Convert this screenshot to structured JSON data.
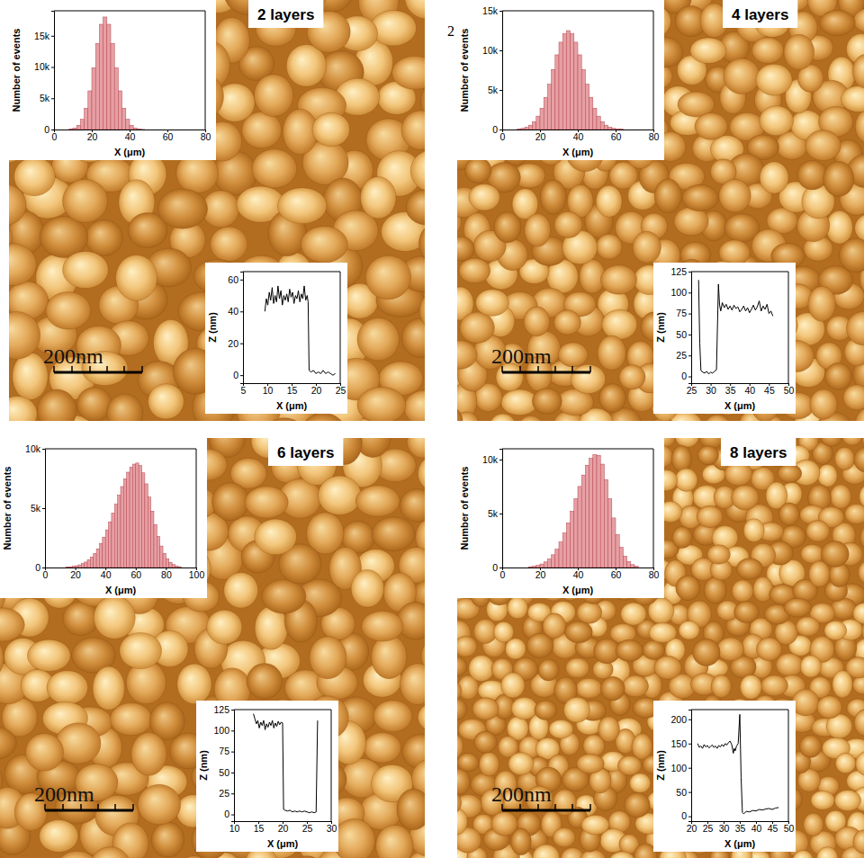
{
  "chart_data": [
    {
      "type": "histogram",
      "title": "2 layers",
      "annotations": [
        "200nm"
      ],
      "x_label": "X (μm)",
      "y_label": "Number of events",
      "bins": [
        8,
        10,
        12,
        14,
        16,
        18,
        20,
        22,
        24,
        26,
        28,
        30,
        32,
        34,
        36,
        38,
        40,
        42,
        44,
        46,
        48
      ],
      "counts": [
        80,
        250,
        680,
        1630,
        3400,
        6190,
        9880,
        13790,
        16840,
        18000,
        16840,
        13790,
        9880,
        6190,
        3400,
        1630,
        680,
        250,
        80,
        20
      ],
      "color": "#e6a0a4",
      "xlim": [
        0,
        80
      ],
      "xticks": [
        0,
        20,
        40,
        60,
        80
      ],
      "ylim": [
        0,
        19000
      ],
      "yticks": [
        0,
        {
          "value": 5000,
          "label": "5k"
        },
        {
          "value": 10000,
          "label": "10k"
        },
        {
          "value": 15000,
          "label": "15k"
        }
      ]
    },
    {
      "type": "line",
      "x_label": "X (μm)",
      "y_label": "Z (nm)",
      "x": [
        9.5,
        9.8,
        10.1,
        10.4,
        10.7,
        11.0,
        11.3,
        11.6,
        11.9,
        12.2,
        12.5,
        12.8,
        13.1,
        13.4,
        13.7,
        14.0,
        14.3,
        14.6,
        14.9,
        15.2,
        15.5,
        15.8,
        16.1,
        16.4,
        16.7,
        17.0,
        17.3,
        17.6,
        17.9,
        18.2,
        18.4,
        18.6,
        19.0,
        19.5,
        20.0,
        20.5,
        21.0,
        21.5,
        22.0,
        22.5,
        23.0,
        23.5,
        24.0
      ],
      "values": [
        40,
        48,
        44,
        52,
        47,
        55,
        45,
        50,
        46,
        56,
        48,
        53,
        44,
        50,
        47,
        51,
        46,
        54,
        49,
        52,
        45,
        50,
        48,
        53,
        46,
        51,
        48,
        56,
        47,
        50,
        46,
        3,
        2,
        3,
        1,
        2,
        1,
        3,
        1,
        2,
        1,
        0,
        1
      ],
      "color": "#000000",
      "xlim": [
        5,
        25
      ],
      "xticks": [
        5,
        10,
        15,
        20,
        25
      ],
      "ylim": [
        -5,
        65
      ],
      "yticks": [
        0,
        20,
        40,
        60
      ]
    },
    {
      "type": "histogram",
      "title": "4 layers",
      "annotations": [
        "200nm",
        "2"
      ],
      "x_label": "X (μm)",
      "y_label": "Number of events",
      "bins": [
        8,
        10,
        12,
        14,
        16,
        18,
        20,
        22,
        24,
        26,
        28,
        30,
        32,
        34,
        36,
        38,
        40,
        42,
        44,
        46,
        48,
        50,
        52,
        54,
        56,
        58,
        60,
        62,
        64
      ],
      "counts": [
        60,
        140,
        285,
        549,
        995,
        1690,
        2700,
        4060,
        5730,
        7580,
        9440,
        11030,
        12110,
        12500,
        12110,
        11030,
        9440,
        7580,
        5730,
        4060,
        2700,
        1690,
        995,
        549,
        285,
        139,
        64,
        30
      ],
      "color": "#e6a0a4",
      "xlim": [
        0,
        80
      ],
      "xticks": [
        0,
        20,
        40,
        60,
        80
      ],
      "ylim": [
        0,
        15000
      ],
      "yticks": [
        0,
        {
          "value": 5000,
          "label": "5k"
        },
        {
          "value": 10000,
          "label": "10k"
        },
        {
          "value": 15000,
          "label": "15k"
        }
      ]
    },
    {
      "type": "line",
      "x_label": "X (μm)",
      "y_label": "Z (nm)",
      "x": [
        26.9,
        27.2,
        27.5,
        28,
        28.5,
        29,
        29.5,
        30,
        30.5,
        31,
        31.5,
        32,
        32.3,
        32.6,
        33,
        33.5,
        34,
        34.5,
        35,
        35.5,
        36,
        36.5,
        37,
        37.5,
        38,
        38.5,
        39,
        39.5,
        40,
        40.5,
        41,
        41.5,
        42,
        42.5,
        43,
        43.5,
        44,
        44.5,
        45,
        45.5,
        46
      ],
      "values": [
        115,
        40,
        7,
        5,
        4,
        6,
        3,
        5,
        4,
        6,
        8,
        110,
        85,
        78,
        88,
        82,
        86,
        80,
        84,
        79,
        85,
        81,
        83,
        77,
        80,
        84,
        78,
        82,
        76,
        80,
        85,
        79,
        83,
        90,
        78,
        84,
        80,
        86,
        75,
        78,
        72
      ],
      "color": "#000000",
      "xlim": [
        25,
        50
      ],
      "xticks": [
        25,
        30,
        35,
        40,
        45,
        50
      ],
      "ylim": [
        -8,
        125
      ],
      "yticks": [
        0,
        25,
        50,
        75,
        100,
        125
      ]
    },
    {
      "type": "histogram",
      "title": "6 layers",
      "annotations": [
        "200nm"
      ],
      "x_label": "X (μm)",
      "y_label": "Number of events",
      "bins": [
        14,
        16,
        18,
        20,
        22,
        24,
        26,
        28,
        30,
        32,
        34,
        36,
        38,
        40,
        42,
        44,
        46,
        48,
        50,
        52,
        54,
        56,
        58,
        60,
        62,
        64,
        66,
        68,
        70,
        72,
        74,
        76,
        78,
        80,
        82,
        84,
        86,
        88,
        90
      ],
      "counts": [
        40,
        63,
        98,
        149,
        222,
        322,
        460,
        646,
        886,
        1190,
        1570,
        2020,
        2560,
        3170,
        3850,
        4580,
        5340,
        6100,
        6820,
        7470,
        8030,
        8450,
        8710,
        8800,
        8590,
        7970,
        7050,
        5930,
        4750,
        3620,
        2620,
        1810,
        1190,
        745,
        443,
        250,
        136,
        70
      ],
      "color": "#e6a0a4",
      "xlim": [
        0,
        100
      ],
      "xticks": [
        0,
        20,
        40,
        60,
        80,
        100
      ],
      "ylim": [
        0,
        10000
      ],
      "yticks": [
        0,
        {
          "value": 5000,
          "label": "5k"
        },
        {
          "value": 10000,
          "label": "10k"
        }
      ]
    },
    {
      "type": "line",
      "x_label": "X (μm)",
      "y_label": "Z (nm)",
      "x": [
        14,
        14.3,
        14.6,
        14.9,
        15.2,
        15.5,
        15.8,
        16.1,
        16.4,
        16.7,
        17,
        17.3,
        17.6,
        17.9,
        18.2,
        18.5,
        18.8,
        19.1,
        19.4,
        19.7,
        20,
        20.2,
        20.5,
        21,
        21.5,
        22,
        22.5,
        23,
        23.5,
        24,
        24.5,
        25,
        25.5,
        26,
        26.5,
        26.9,
        27.2
      ],
      "values": [
        120,
        114,
        108,
        112,
        103,
        110,
        106,
        112,
        101,
        108,
        104,
        110,
        106,
        112,
        103,
        109,
        105,
        111,
        107,
        110,
        109,
        6,
        5,
        4,
        5,
        3,
        4,
        3,
        4,
        3,
        4,
        3,
        2,
        3,
        2,
        3,
        112
      ],
      "color": "#000000",
      "xlim": [
        10,
        30
      ],
      "xticks": [
        10,
        15,
        20,
        25,
        30
      ],
      "ylim": [
        -8,
        125
      ],
      "yticks": [
        0,
        25,
        50,
        75,
        100,
        125
      ]
    },
    {
      "type": "histogram",
      "title": "8 layers",
      "annotations": [
        "200nm"
      ],
      "x_label": "X (μm)",
      "y_label": "Number of events",
      "bins": [
        14,
        16,
        18,
        20,
        22,
        24,
        26,
        28,
        30,
        32,
        34,
        36,
        38,
        40,
        42,
        44,
        46,
        48,
        50,
        52,
        54,
        56,
        58,
        60,
        62,
        64,
        66,
        68,
        70,
        72
      ],
      "counts": [
        67,
        117,
        198,
        325,
        518,
        795,
        1180,
        1700,
        2370,
        3190,
        4140,
        5220,
        6370,
        7510,
        8570,
        9470,
        10120,
        10460,
        10390,
        9580,
        8140,
        6370,
        4590,
        3050,
        1870,
        1050,
        550,
        265,
        117
      ],
      "color": "#e6a0a4",
      "xlim": [
        0,
        80
      ],
      "xticks": [
        0,
        20,
        40,
        60,
        80
      ],
      "ylim": [
        0,
        11000
      ],
      "yticks": [
        0,
        {
          "value": 5000,
          "label": "5k"
        },
        {
          "value": 10000,
          "label": "10k"
        }
      ]
    },
    {
      "type": "line",
      "x_label": "X (μm)",
      "y_label": "Z (nm)",
      "x": [
        22,
        22.5,
        23,
        23.5,
        24,
        24.5,
        25,
        25.5,
        26,
        26.5,
        27,
        27.5,
        28,
        28.5,
        29,
        29.5,
        30,
        30.5,
        31,
        31.5,
        32,
        32.5,
        33,
        33.3,
        33.6,
        34,
        34.5,
        35,
        35.4,
        35.8,
        36.2,
        37,
        38,
        39,
        40,
        41,
        42,
        43,
        44,
        45,
        46,
        47
      ],
      "values": [
        150,
        142,
        145,
        140,
        148,
        143,
        146,
        141,
        144,
        147,
        142,
        145,
        140,
        146,
        143,
        148,
        144,
        150,
        147,
        152,
        155,
        148,
        130,
        140,
        135,
        145,
        150,
        210,
        80,
        8,
        5,
        10,
        9,
        12,
        11,
        14,
        13,
        15,
        16,
        14,
        17,
        18
      ],
      "color": "#000000",
      "xlim": [
        20,
        50
      ],
      "xticks": [
        20,
        25,
        30,
        35,
        40,
        45,
        50
      ],
      "ylim": [
        -10,
        220
      ],
      "yticks": [
        0,
        50,
        100,
        150,
        200
      ]
    }
  ]
}
